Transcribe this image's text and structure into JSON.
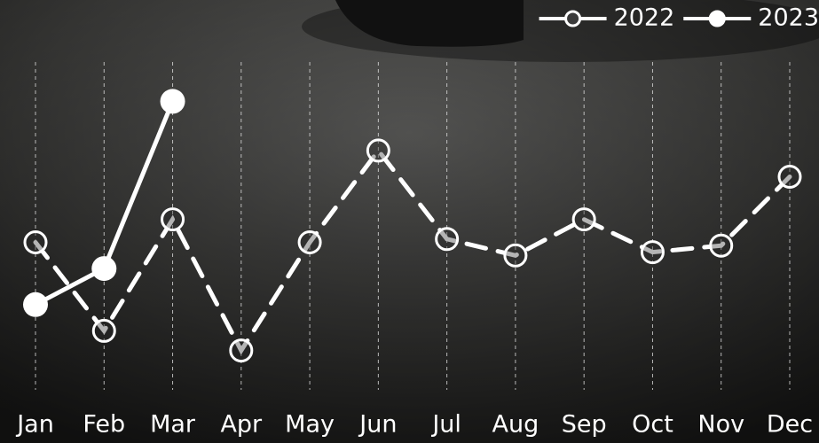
{
  "chart_data": {
    "type": "line",
    "categories": [
      "Jan",
      "Feb",
      "Mar",
      "Apr",
      "May",
      "Jun",
      "Jul",
      "Aug",
      "Sep",
      "Oct",
      "Nov",
      "Dec"
    ],
    "series": [
      {
        "name": "2022",
        "color": "#ffffff",
        "values": [
          45,
          18,
          52,
          12,
          45,
          73,
          46,
          41,
          52,
          42,
          44,
          65
        ]
      },
      {
        "name": "2023",
        "color": "#ffffff",
        "values": [
          26,
          37,
          88,
          null,
          null,
          null,
          null,
          null,
          null,
          null,
          null,
          null
        ]
      }
    ],
    "ylim": [
      0,
      100
    ],
    "grid": true,
    "legend": "top-right"
  }
}
